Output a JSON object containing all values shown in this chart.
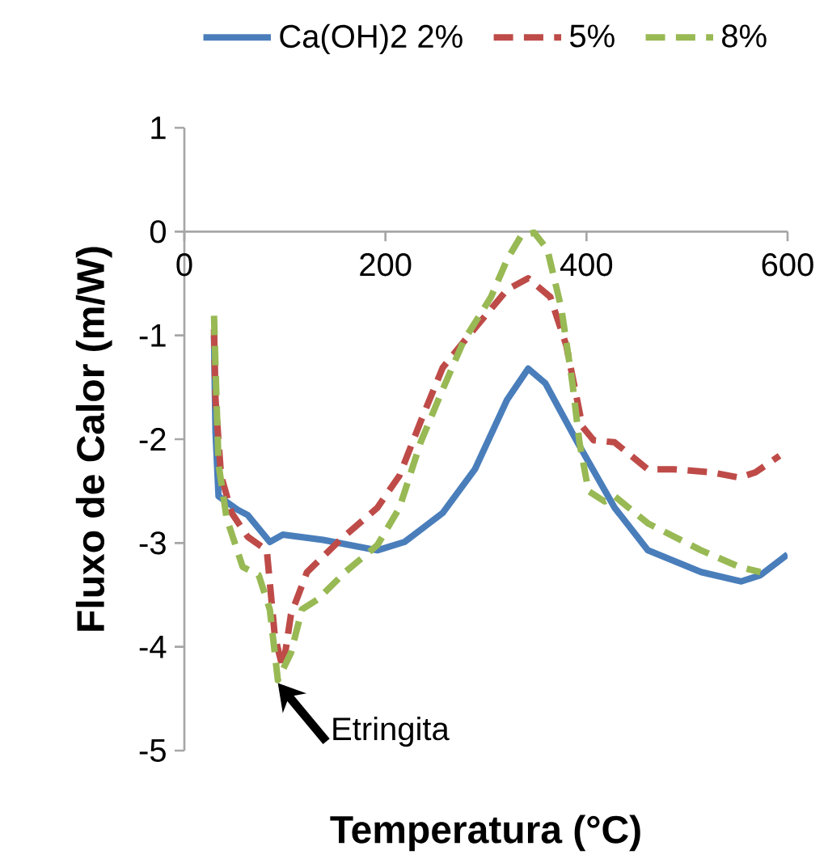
{
  "chart_data": {
    "type": "line",
    "xlabel": "Temperatura (°C)",
    "ylabel": "Fluxo de Calor (m/W)",
    "xlim": [
      0,
      600
    ],
    "ylim": [
      -5,
      1
    ],
    "xticks": [
      0,
      200,
      400,
      600
    ],
    "yticks": [
      -5,
      -4,
      -3,
      -2,
      -1,
      0,
      1
    ],
    "grid": false,
    "legend": "top",
    "marker": "none",
    "annotations": [
      {
        "text": "Etringita",
        "x": 93,
        "y": -4.35
      }
    ],
    "series": [
      {
        "name": "Ca(OH)2 2%",
        "color": "#4a7ebb",
        "line_style": "solid",
        "x": [
          29.5,
          31,
          34,
          53,
          63,
          85,
          98,
          138,
          192,
          219,
          257,
          289,
          321,
          342,
          359,
          391,
          428,
          461,
          514,
          554,
          573,
          600
        ],
        "values": [
          -1.0,
          -1.93,
          -2.55,
          -2.68,
          -2.73,
          -2.99,
          -2.92,
          -2.97,
          -3.07,
          -2.99,
          -2.71,
          -2.29,
          -1.62,
          -1.32,
          -1.46,
          -2.03,
          -2.66,
          -3.07,
          -3.28,
          -3.37,
          -3.31,
          -3.11
        ]
      },
      {
        "name": "5%",
        "color": "#be4b48",
        "line_style": "dashed",
        "x": [
          29.5,
          31,
          36.5,
          47,
          63,
          82,
          90,
          98,
          106,
          122,
          155,
          192,
          214,
          235,
          257,
          283,
          321,
          342,
          364,
          380,
          396,
          407,
          428,
          461,
          487,
          525,
          552,
          568,
          592
        ],
        "values": [
          -0.94,
          -1.62,
          -2.35,
          -2.71,
          -2.94,
          -3.07,
          -3.9,
          -4.21,
          -3.69,
          -3.28,
          -2.97,
          -2.66,
          -2.35,
          -1.83,
          -1.31,
          -1.0,
          -0.56,
          -0.45,
          -0.63,
          -1.1,
          -1.88,
          -2.01,
          -2.03,
          -2.29,
          -2.29,
          -2.32,
          -2.37,
          -2.32,
          -2.16
        ]
      },
      {
        "name": "8%",
        "color": "#98b954",
        "line_style": "dashed",
        "x": [
          29.5,
          31,
          34,
          42,
          58,
          74,
          85,
          93,
          106,
          117,
          133,
          160,
          192,
          214,
          235,
          257,
          278,
          305,
          321,
          335,
          348,
          361,
          375,
          386,
          393,
          402,
          418,
          428,
          461,
          514,
          552,
          573
        ],
        "values": [
          -0.81,
          -1.31,
          -2.24,
          -2.76,
          -3.23,
          -3.31,
          -3.64,
          -4.32,
          -4.06,
          -3.64,
          -3.54,
          -3.28,
          -3.02,
          -2.66,
          -2.03,
          -1.52,
          -1.05,
          -0.63,
          -0.27,
          -0.04,
          -0.01,
          -0.17,
          -0.74,
          -1.46,
          -2.03,
          -2.5,
          -2.6,
          -2.55,
          -2.81,
          -3.07,
          -3.23,
          -3.28
        ]
      }
    ]
  }
}
